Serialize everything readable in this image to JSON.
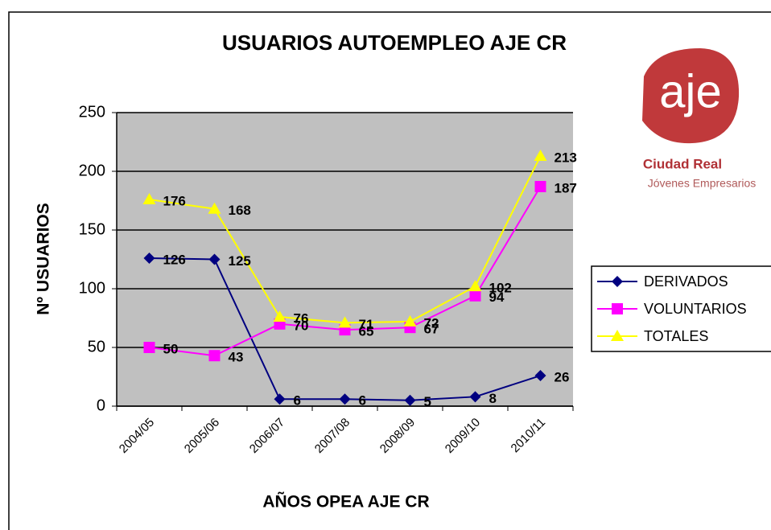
{
  "chart_data": {
    "type": "line",
    "title": "USUARIOS AUTOEMPLEO AJE CR",
    "x_label": "AÑOS OPEA AJE CR",
    "y_label": "Nº USUARIOS",
    "categories": [
      "2004/05",
      "2005/06",
      "2006/07",
      "2007/08",
      "2008/09",
      "2009/10",
      "2010/11"
    ],
    "series": [
      {
        "name": "DERIVADOS",
        "color": "#000080",
        "marker": "diamond",
        "values": [
          126,
          125,
          6,
          6,
          5,
          8,
          26
        ]
      },
      {
        "name": "VOLUNTARIOS",
        "color": "#ff00ff",
        "marker": "square",
        "values": [
          50,
          43,
          70,
          65,
          67,
          94,
          187
        ]
      },
      {
        "name": "TOTALES",
        "color": "#ffff00",
        "marker": "triangle",
        "values": [
          176,
          168,
          76,
          71,
          72,
          102,
          213
        ]
      }
    ],
    "ylim": [
      0,
      250
    ],
    "yticks": [
      0,
      50,
      100,
      150,
      200,
      250
    ],
    "grid": true,
    "legend": "right",
    "logo": {
      "text": "aje",
      "line1": "Ciudad Real",
      "line2": "Jóvenes Empresarios"
    }
  }
}
